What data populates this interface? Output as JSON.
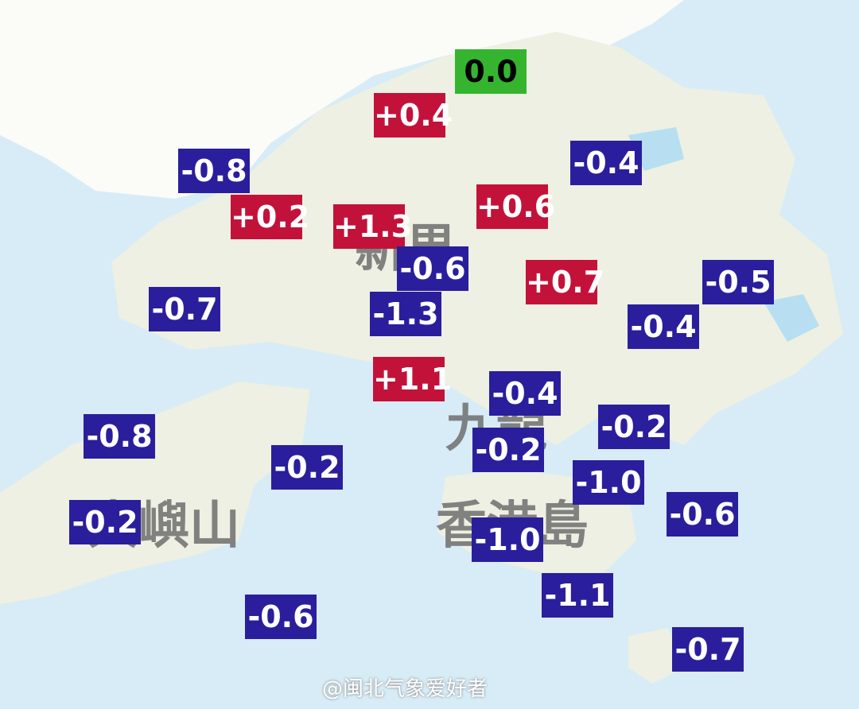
{
  "map": {
    "places": [
      "新界",
      "九龍",
      "香港島",
      "大嶼山"
    ],
    "stations": {
      "values": [
        0.0,
        0.4,
        -0.8,
        0.2,
        1.3,
        0.6,
        -0.4,
        -0.6,
        0.7,
        -0.5,
        -0.7,
        -1.3,
        -0.4,
        1.1,
        -0.4,
        -0.2,
        -0.8,
        -0.2,
        -0.2,
        -1.0,
        -0.6,
        -0.2,
        -1.0,
        -1.1,
        -0.6,
        -0.7
      ],
      "value_labels": [
        "0.0",
        "+0.4",
        "-0.8",
        "+0.2",
        "+1.3",
        "+0.6",
        "-0.4",
        "-0.6",
        "+0.7",
        "-0.5",
        "-0.7",
        "-1.3",
        "-0.4",
        "+1.1",
        "-0.4",
        "-0.2",
        "-0.8",
        "-0.2",
        "-0.2",
        "-1.0",
        "-0.6",
        "-0.2",
        "-1.0",
        "-1.1",
        "-0.6",
        "-0.7"
      ]
    },
    "colors": {
      "positive": "#c3123a",
      "negative": "#2a1e9c",
      "zero": "#35b52f"
    },
    "watermark": "@闽北气象爱好者"
  }
}
